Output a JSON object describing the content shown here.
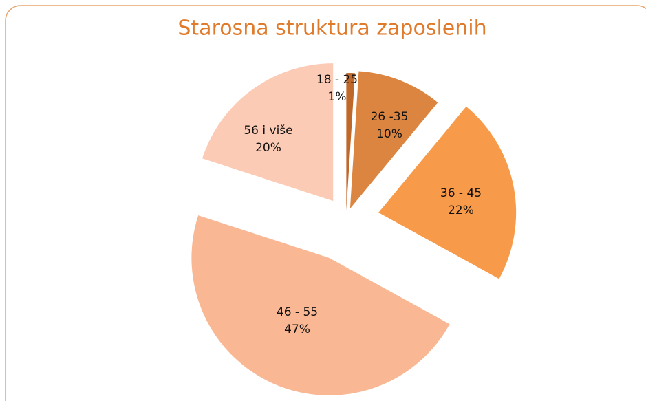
{
  "chart_data": {
    "type": "pie",
    "title": "Starosna struktura zaposlenih",
    "categories": [
      "18 - 25",
      "26 -35",
      "36 - 45",
      "46 - 55",
      "56 i više"
    ],
    "values": [
      1,
      10,
      22,
      47,
      20
    ],
    "value_labels": [
      "1%",
      "10%",
      "22%",
      "47%",
      "20%"
    ],
    "colors": [
      "#c0672a",
      "#dc8541",
      "#f79a4a",
      "#f9b893",
      "#fbcbb5"
    ]
  }
}
